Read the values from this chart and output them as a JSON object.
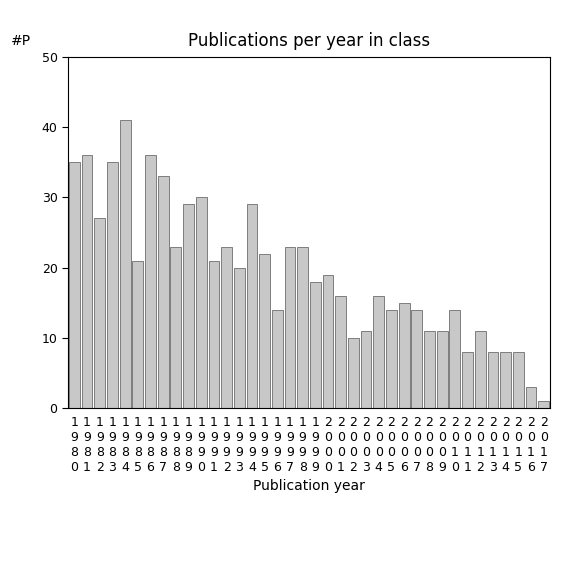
{
  "title": "Publications per year in class",
  "xlabel": "Publication year",
  "ylabel": "#P",
  "years": [
    "1980",
    "1981",
    "1982",
    "1983",
    "1984",
    "1985",
    "1986",
    "1987",
    "1988",
    "1989",
    "1990",
    "1991",
    "1992",
    "1993",
    "1994",
    "1995",
    "1996",
    "1997",
    "1998",
    "1999",
    "2000",
    "2001",
    "2002",
    "2003",
    "2004",
    "2005",
    "2006",
    "2007",
    "2008",
    "2009",
    "2010",
    "2011",
    "2012",
    "2013",
    "2014",
    "2015",
    "2016",
    "2017"
  ],
  "values": [
    35,
    36,
    27,
    35,
    41,
    21,
    36,
    33,
    23,
    29,
    30,
    21,
    23,
    20,
    29,
    22,
    14,
    23,
    23,
    18,
    19,
    16,
    10,
    11,
    16,
    14,
    15,
    14,
    11,
    11,
    14,
    8,
    11,
    8,
    8,
    8,
    3,
    1
  ],
  "bar_color": "#c8c8c8",
  "bar_edgecolor": "#555555",
  "ylim": [
    0,
    50
  ],
  "yticks": [
    0,
    10,
    20,
    30,
    40,
    50
  ],
  "background_color": "#ffffff",
  "title_fontsize": 12,
  "axis_label_fontsize": 10,
  "tick_fontsize": 9
}
